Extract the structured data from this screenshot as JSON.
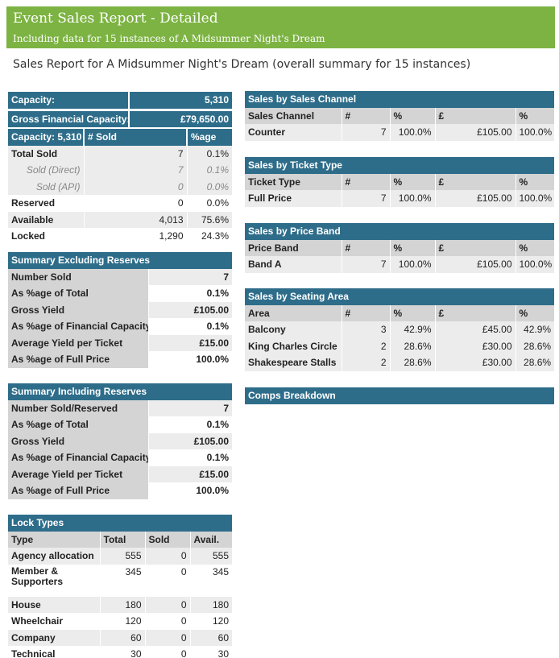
{
  "header": {
    "title": "Event Sales Report - Detailed",
    "subtitle": "Including data for 15 instances of A Midsummer Night's Dream"
  },
  "report_title": "Sales Report for A Midsummer Night's Dream (overall summary for 15 instances)",
  "capacity_box": {
    "capacity_label": "Capacity:",
    "capacity_value": "5,310",
    "financial_label": "Gross Financial Capacity:",
    "financial_value": "£79,650.00"
  },
  "capacity_table": {
    "headers": [
      "Capacity: 5,310",
      "# Sold",
      "%age"
    ],
    "rows": [
      {
        "label": "Total Sold",
        "sold": "7",
        "pct": "0.1%"
      },
      {
        "label": "Sold (Direct)",
        "sold": "7",
        "pct": "0.1%"
      },
      {
        "label": "Sold (API)",
        "sold": "0",
        "pct": "0.0%"
      },
      {
        "label": "Reserved",
        "sold": "0",
        "pct": "0.0%"
      },
      {
        "label": "Available",
        "sold": "4,013",
        "pct": "75.6%"
      },
      {
        "label": "Locked",
        "sold": "1,290",
        "pct": "24.3%"
      }
    ]
  },
  "summary_excl": {
    "title": "Summary Excluding Reserves",
    "rows": [
      {
        "label": "Number Sold",
        "value": "7"
      },
      {
        "label": "As %age of Total",
        "value": "0.1%"
      },
      {
        "label": "Gross Yield",
        "value": "£105.00"
      },
      {
        "label": "As %age of Financial Capacity",
        "value": "0.1%"
      },
      {
        "label": "Average Yield per Ticket",
        "value": "£15.00"
      },
      {
        "label": "As %age of Full Price",
        "value": "100.0%"
      }
    ]
  },
  "summary_incl": {
    "title": "Summary Including Reserves",
    "rows": [
      {
        "label": "Number Sold/Reserved",
        "value": "7"
      },
      {
        "label": "As %age of Total",
        "value": "0.1%"
      },
      {
        "label": "Gross Yield",
        "value": "£105.00"
      },
      {
        "label": "As %age of Financial Capacity",
        "value": "0.1%"
      },
      {
        "label": "Average Yield per Ticket",
        "value": "£15.00"
      },
      {
        "label": "As %age of Full Price",
        "value": "100.0%"
      }
    ]
  },
  "lock_types": {
    "title": "Lock Types",
    "headers": [
      "Type",
      "Total",
      "Sold",
      "Avail."
    ],
    "rows": [
      {
        "type": "Agency allocation",
        "total": "555",
        "sold": "0",
        "avail": "555"
      },
      {
        "type": "Member & Supporters",
        "total": "345",
        "sold": "0",
        "avail": "345"
      },
      {
        "type": "House",
        "total": "180",
        "sold": "0",
        "avail": "180"
      },
      {
        "type": "Wheelchair",
        "total": "120",
        "sold": "0",
        "avail": "120"
      },
      {
        "type": "Company",
        "total": "60",
        "sold": "0",
        "avail": "60"
      },
      {
        "type": "Technical",
        "total": "30",
        "sold": "0",
        "avail": "30"
      }
    ]
  },
  "sales_channel": {
    "title": "Sales by Sales Channel",
    "headers": [
      "Sales Channel",
      "#",
      "%",
      "£",
      "%"
    ],
    "rows": [
      {
        "name": "Counter",
        "count": "7",
        "pct": "100.0%",
        "amount": "£105.00",
        "amount_pct": "100.0%"
      }
    ]
  },
  "ticket_type": {
    "title": "Sales by Ticket Type",
    "headers": [
      "Ticket Type",
      "#",
      "%",
      "£",
      "%"
    ],
    "rows": [
      {
        "name": "Full Price",
        "count": "7",
        "pct": "100.0%",
        "amount": "£105.00",
        "amount_pct": "100.0%"
      }
    ]
  },
  "price_band": {
    "title": "Sales by Price Band",
    "headers": [
      "Price Band",
      "#",
      "%",
      "£",
      "%"
    ],
    "rows": [
      {
        "name": "Band A",
        "count": "7",
        "pct": "100.0%",
        "amount": "£105.00",
        "amount_pct": "100.0%"
      }
    ]
  },
  "seating_area": {
    "title": "Sales by Seating Area",
    "headers": [
      "Area",
      "#",
      "%",
      "£",
      "%"
    ],
    "rows": [
      {
        "name": "Balcony",
        "count": "3",
        "pct": "42.9%",
        "amount": "£45.00",
        "amount_pct": "42.9%"
      },
      {
        "name": "King Charles Circle",
        "count": "2",
        "pct": "28.6%",
        "amount": "£30.00",
        "amount_pct": "28.6%"
      },
      {
        "name": "Shakespeare Stalls",
        "count": "2",
        "pct": "28.6%",
        "amount": "£30.00",
        "amount_pct": "28.6%"
      }
    ]
  },
  "comps": {
    "title": "Comps Breakdown"
  },
  "colors": {
    "banner": "#7cb342",
    "header_blue": "#2e6d8a",
    "column_header_grey": "#d4d4d4",
    "row_grey": "#ececec"
  }
}
